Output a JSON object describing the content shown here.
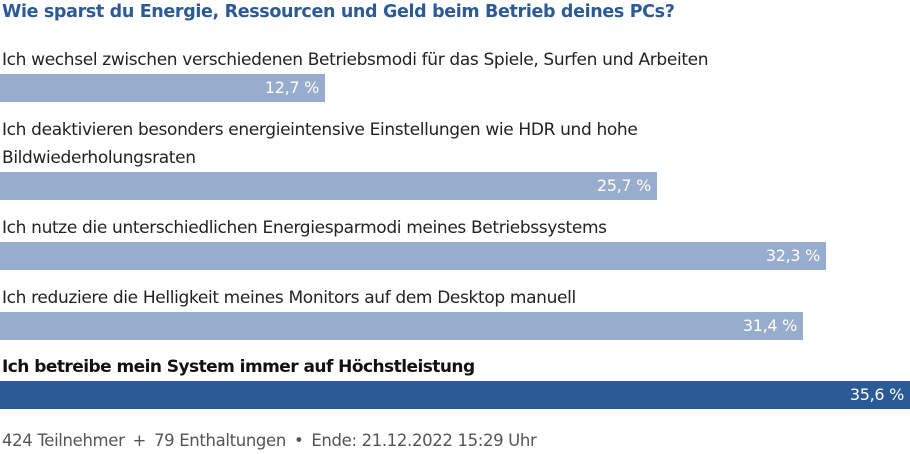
{
  "poll": {
    "question": "Wie sparst du Energie, Ressourcen und Geld beim Betrieb deines PCs?"
  },
  "chart_data": {
    "type": "bar",
    "orientation": "horizontal",
    "title": "Wie sparst du Energie, Ressourcen und Geld beim Betrieb deines PCs?",
    "unit": "%",
    "categories": [
      "Ich wechsel zwischen verschiedenen Betriebsmodi für das Spiele, Surfen und Arbeiten",
      "Ich deaktivieren besonders energieintensive Einstellungen wie HDR und hohe Bildwiederholungsraten",
      "Ich nutze die unterschiedlichen Energiesparmodi meines Betriebssystems",
      "Ich reduziere die Helligkeit meines Monitors auf dem Desktop manuell",
      "Ich betreibe mein System immer auf Höchstleistung"
    ],
    "values": [
      12.7,
      25.7,
      32.3,
      31.4,
      35.6
    ],
    "value_labels": [
      "12,7 %",
      "25,7 %",
      "32,3 %",
      "31,4 %",
      "35,6 %"
    ],
    "highlighted_index": 4,
    "xlim": [
      0,
      35.6
    ],
    "colors": {
      "bar": "#98acce",
      "winner_bar": "#2c5a97",
      "title": "#2c5a97"
    }
  },
  "footer": {
    "participants": "424 Teilnehmer",
    "plus": "+",
    "abstentions": "79 Enthaltungen",
    "dot": "•",
    "end": "Ende: 21.12.2022 15:29 Uhr"
  }
}
